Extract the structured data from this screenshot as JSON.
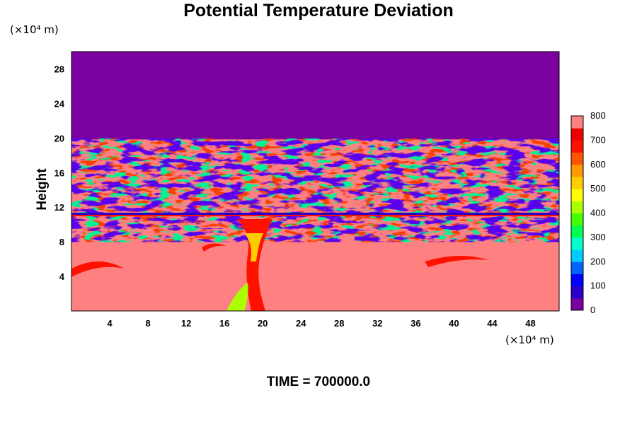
{
  "chart_data": {
    "type": "heatmap",
    "title": "Potential Temperature Deviation",
    "ylabel": "Height",
    "xlabel": "",
    "x_unit": "(×10⁴ m)",
    "y_unit": "(×10⁴ m)",
    "xlim": [
      0,
      51
    ],
    "ylim": [
      0,
      30
    ],
    "x_ticks": [
      "4",
      "8",
      "12",
      "16",
      "20",
      "24",
      "28",
      "32",
      "36",
      "40",
      "44",
      "48"
    ],
    "y_ticks": [
      "4",
      "8",
      "12",
      "16",
      "20",
      "24",
      "28"
    ],
    "colorbar": {
      "min": 0,
      "max": 800,
      "labels": [
        "0",
        "100",
        "200",
        "300",
        "400",
        "500",
        "600",
        "700",
        "800"
      ],
      "colors": [
        "#7a00a0",
        "#2a00c8",
        "#0000ff",
        "#0066ff",
        "#00ccff",
        "#00ffcc",
        "#00ff55",
        "#44ff00",
        "#aaff00",
        "#ffff00",
        "#ffcc00",
        "#ff9900",
        "#ff5500",
        "#ff1100",
        "#ee0000",
        "#ff8080"
      ]
    },
    "fields": {
      "upper_uniform_value": 0,
      "lower_background_value": 800,
      "disturbed_layer_height_range": [
        8,
        20
      ],
      "inversion_line_height": 11.2
    },
    "time_label": "TIME = 700000.0"
  }
}
